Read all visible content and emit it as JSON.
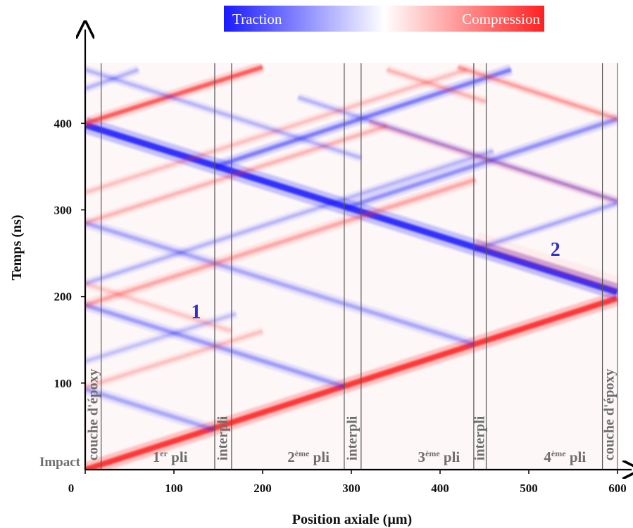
{
  "chart_data": {
    "type": "heatmap",
    "title": "",
    "xlabel": "Position axiale (µm)",
    "ylabel": "Temps (ns)",
    "xlim": [
      0,
      600
    ],
    "ylim": [
      0,
      465
    ],
    "x_ticks": [
      0,
      100,
      200,
      300,
      400,
      500,
      600
    ],
    "y_ticks": [
      100,
      200,
      300,
      400
    ],
    "colorbar": {
      "negative_label": "Traction",
      "positive_label": "Compression",
      "negative_color": "#1a1aff",
      "positive_color": "#ff2020"
    },
    "interfaces_um": [
      18,
      146,
      165,
      292,
      311,
      438,
      452,
      583,
      600
    ],
    "regions": [
      {
        "label": "couche d'époxy",
        "x_um": 9,
        "orientation": "vertical"
      },
      {
        "base": "1",
        "sup": "er",
        "suffix": " pli",
        "x_um": 76
      },
      {
        "label": "interpli",
        "x_um": 155,
        "orientation": "vertical"
      },
      {
        "base": "2",
        "sup": "ème",
        "suffix": " pli",
        "x_um": 228
      },
      {
        "label": "interpli",
        "x_um": 301,
        "orientation": "vertical"
      },
      {
        "base": "3",
        "sup": "ème",
        "suffix": " pli",
        "x_um": 375
      },
      {
        "label": "interpli",
        "x_um": 445,
        "orientation": "vertical"
      },
      {
        "base": "4",
        "sup": "ème",
        "suffix": " pli",
        "x_um": 517
      },
      {
        "label": "couche d'époxy",
        "x_um": 591,
        "orientation": "vertical"
      }
    ],
    "impact_label": "Impact",
    "annotations": [
      {
        "text": "1",
        "x_um": 125,
        "t_ns": 175
      },
      {
        "text": "2",
        "x_um": 530,
        "t_ns": 247
      }
    ],
    "waves": [
      {
        "kind": "compression",
        "from": [
          0,
          0
        ],
        "to": [
          600,
          198
        ],
        "strength": 1.0,
        "width": 8
      },
      {
        "kind": "traction",
        "from": [
          600,
          205
        ],
        "to": [
          0,
          398
        ],
        "strength": 1.0,
        "width": 9
      },
      {
        "kind": "compression",
        "from": [
          0,
          400
        ],
        "to": [
          200,
          465
        ],
        "strength": 0.75,
        "width": 6
      },
      {
        "kind": "traction",
        "from": [
          146,
          46
        ],
        "to": [
          0,
          93
        ],
        "strength": 0.35,
        "width": 6
      },
      {
        "kind": "traction",
        "from": [
          292,
          96
        ],
        "to": [
          0,
          190
        ],
        "strength": 0.4,
        "width": 6
      },
      {
        "kind": "traction",
        "from": [
          438,
          145
        ],
        "to": [
          0,
          285
        ],
        "strength": 0.35,
        "width": 6
      },
      {
        "kind": "compression",
        "from": [
          0,
          95
        ],
        "to": [
          200,
          160
        ],
        "strength": 0.25,
        "width": 5
      },
      {
        "kind": "compression",
        "from": [
          0,
          190
        ],
        "to": [
          440,
          335
        ],
        "strength": 0.35,
        "width": 6
      },
      {
        "kind": "compression",
        "from": [
          0,
          285
        ],
        "to": [
          340,
          397
        ],
        "strength": 0.3,
        "width": 5
      },
      {
        "kind": "traction",
        "from": [
          0,
          215
        ],
        "to": [
          460,
          368
        ],
        "strength": 0.3,
        "width": 5
      },
      {
        "kind": "traction",
        "from": [
          146,
          350
        ],
        "to": [
          480,
          462
        ],
        "strength": 0.55,
        "width": 6
      },
      {
        "kind": "traction",
        "from": [
          292,
          302
        ],
        "to": [
          600,
          405
        ],
        "strength": 0.45,
        "width": 6
      },
      {
        "kind": "traction",
        "from": [
          438,
          254
        ],
        "to": [
          600,
          308
        ],
        "strength": 0.35,
        "width": 5
      },
      {
        "kind": "compression",
        "from": [
          600,
          310
        ],
        "to": [
          320,
          402
        ],
        "strength": 0.3,
        "width": 5
      },
      {
        "kind": "compression",
        "from": [
          600,
          405
        ],
        "to": [
          420,
          465
        ],
        "strength": 0.4,
        "width": 5
      },
      {
        "kind": "traction",
        "from": [
          600,
          310
        ],
        "to": [
          240,
          430
        ],
        "strength": 0.3,
        "width": 5
      },
      {
        "kind": "compression",
        "from": [
          0,
          320
        ],
        "to": [
          430,
          462
        ],
        "strength": 0.25,
        "width": 5
      },
      {
        "kind": "traction",
        "from": [
          0,
          125
        ],
        "to": [
          170,
          180
        ],
        "strength": 0.25,
        "width": 5
      },
      {
        "kind": "compression",
        "from": [
          165,
          160
        ],
        "to": [
          0,
          215
        ],
        "strength": 0.22,
        "width": 5
      },
      {
        "kind": "traction",
        "from": [
          311,
          360
        ],
        "to": [
          0,
          462
        ],
        "strength": 0.3,
        "width": 5
      },
      {
        "kind": "compression",
        "from": [
          452,
          425
        ],
        "to": [
          340,
          462
        ],
        "strength": 0.3,
        "width": 5
      },
      {
        "kind": "traction",
        "from": [
          0,
          440
        ],
        "to": [
          60,
          462
        ],
        "strength": 0.3,
        "width": 5
      },
      {
        "kind": "compression",
        "from": [
          600,
          210
        ],
        "to": [
          440,
          262
        ],
        "strength": 0.18,
        "width": 12
      }
    ]
  }
}
